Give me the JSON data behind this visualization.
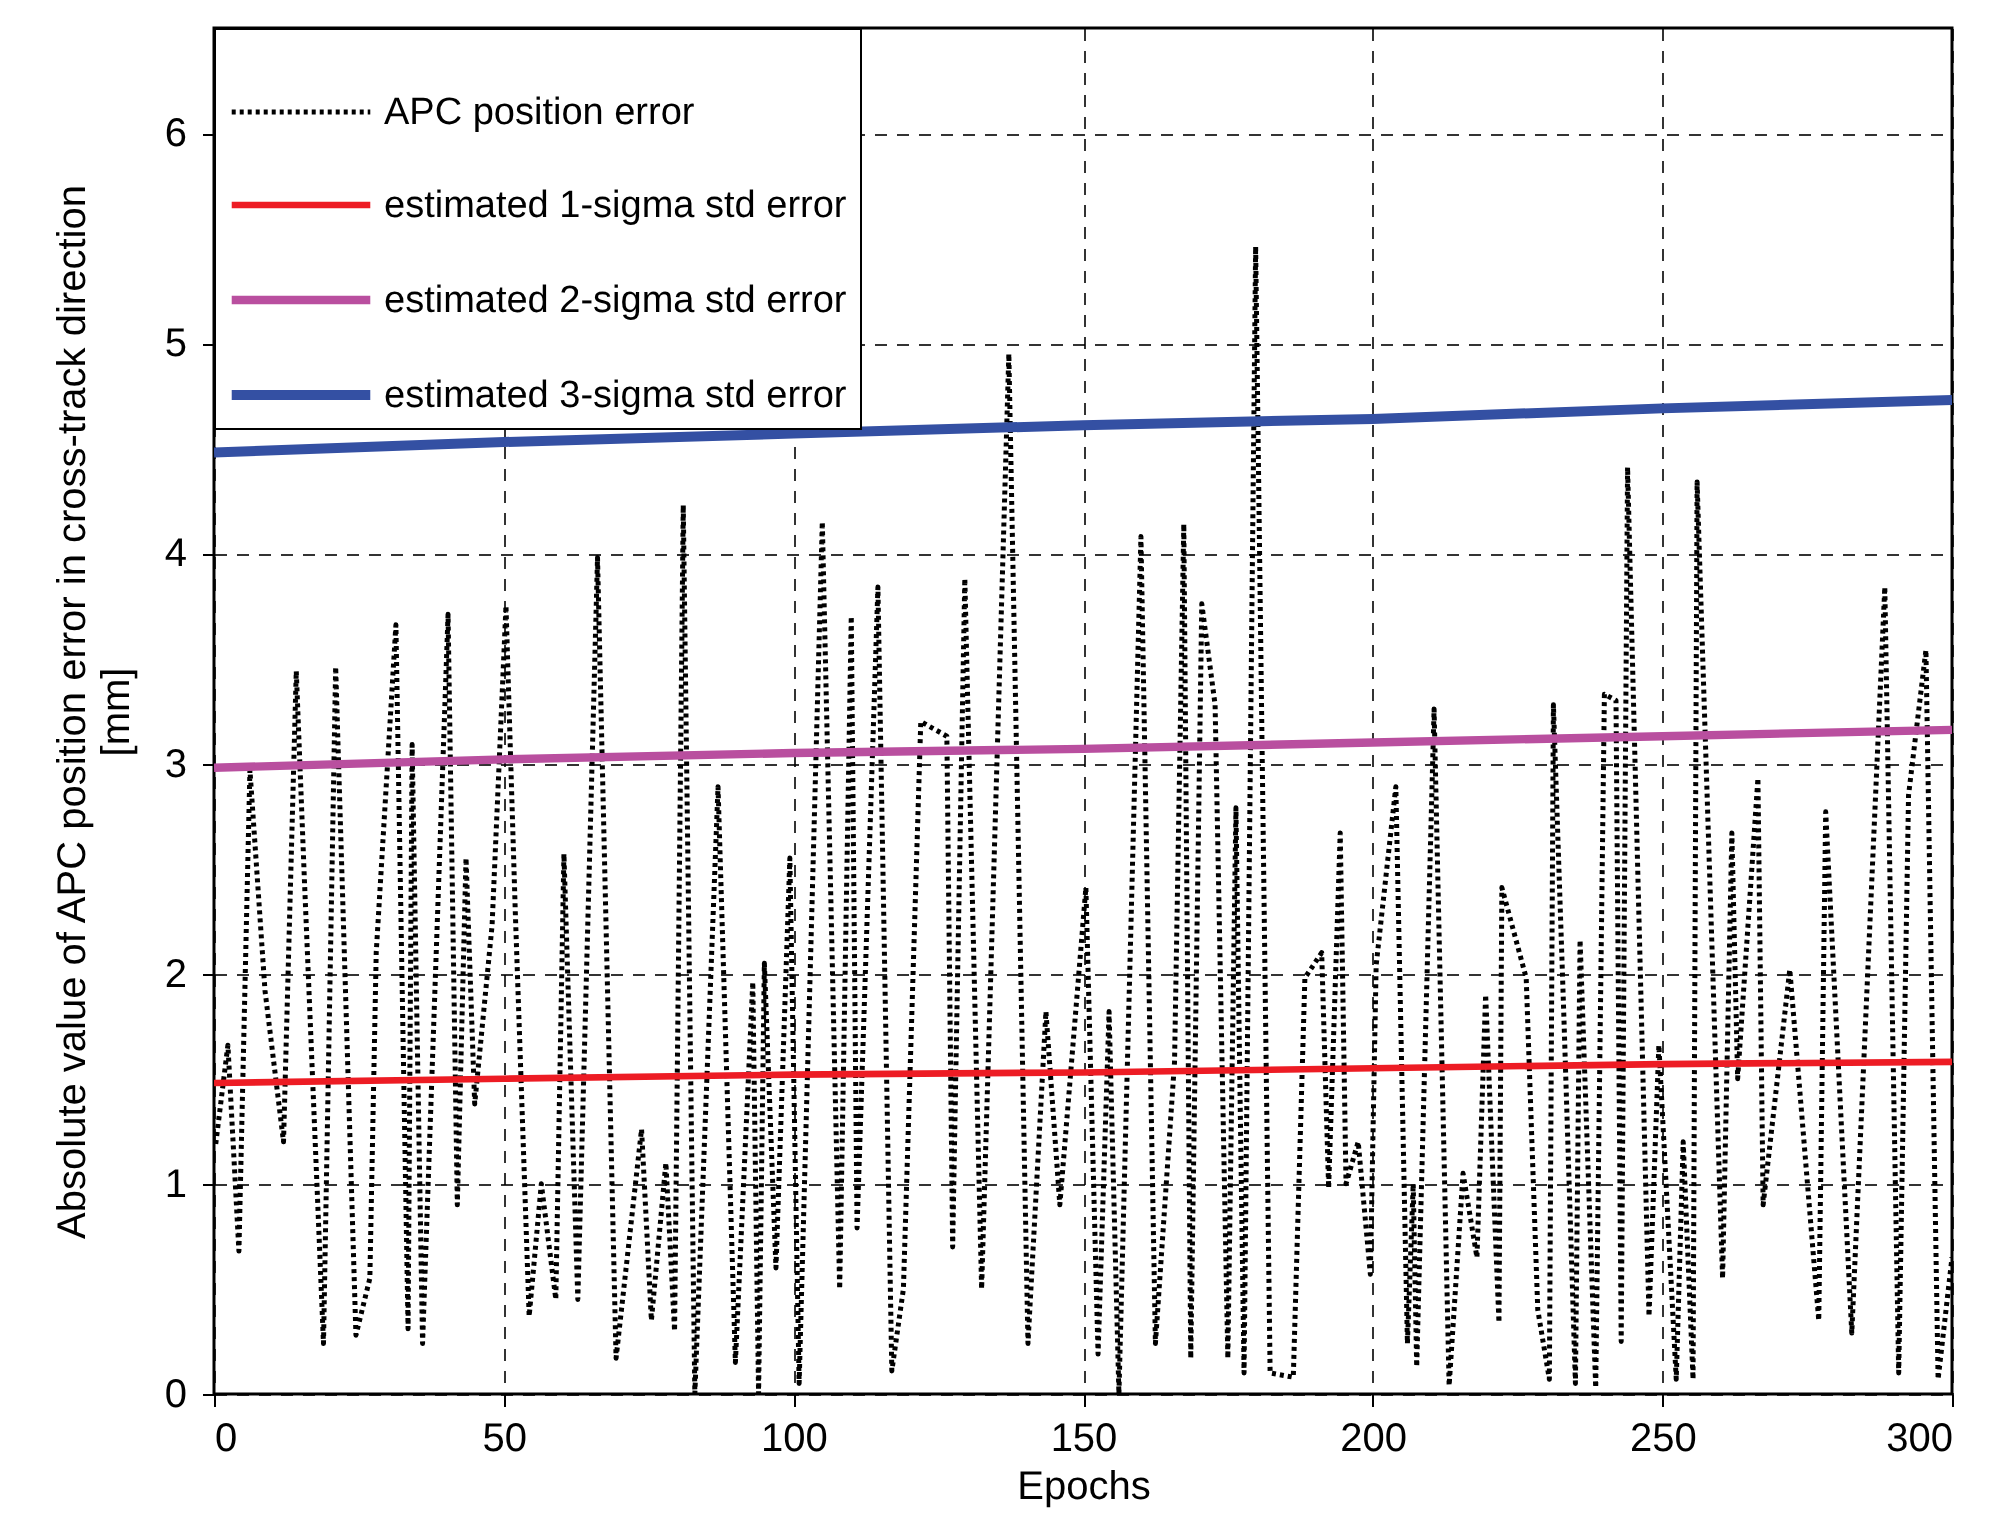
{
  "chart_data": {
    "type": "line",
    "xlabel": "Epochs",
    "ylabel": "Absolute value of APC position error in cross-track direction [mm]",
    "xlim": [
      0,
      300
    ],
    "ylim": [
      0,
      6.5
    ],
    "xticks": [
      0,
      50,
      100,
      150,
      200,
      250,
      300
    ],
    "yticks": [
      0,
      1,
      2,
      3,
      4,
      5,
      6
    ],
    "grid": true,
    "legend": "top left",
    "marker": "none",
    "series": [
      {
        "name": "APC position error",
        "color": "#000000",
        "line_style": "dotted",
        "x": [
          0.3,
          2.4,
          4.3,
          6.2,
          8.8,
          12,
          14.2,
          15.6,
          18.9,
          21,
          24.5,
          26.9,
          28,
          31.4,
          33.5,
          34.2,
          36,
          40.4,
          42,
          43.5,
          45,
          48,
          50.4,
          52,
          54.4,
          56.5,
          59,
          60.4,
          62.8,
          66.2,
          69.4,
          73.8,
          75.5,
          78,
          79.5,
          81,
          83,
          87,
          90,
          93,
          94,
          95,
          97,
          99.4,
          101,
          105,
          108,
          110,
          111,
          114.6,
          117,
          119,
          122,
          126.5,
          127.5,
          129.6,
          132.5,
          137.2,
          140.5,
          143.6,
          146,
          150.5,
          152.6,
          154.5,
          156.2,
          160,
          162.5,
          165.8,
          167.4,
          168.6,
          170.5,
          172.8,
          175,
          176.4,
          177.8,
          179.8,
          182.3,
          186.3,
          188.3,
          191.2,
          192.4,
          194.4,
          195.4,
          197.5,
          199.6,
          200.6,
          204,
          206,
          207,
          207.6,
          210.6,
          213.2,
          215.6,
          218,
          219.5,
          221.8,
          222.3,
          226.5,
          228.5,
          230.5,
          231.2,
          233,
          235,
          235.8,
          238.5,
          240,
          242,
          242.9,
          244,
          247.7,
          249.4,
          252.4,
          253.6,
          255.3,
          256,
          260.4,
          262,
          263,
          266.5,
          267.4,
          272,
          277,
          278.2,
          282.7,
          288.4,
          290.8,
          292.5,
          295.5,
          297.6,
          300
        ],
        "values": [
          1.19,
          1.66,
          0.68,
          2.97,
          1.92,
          1.2,
          3.44,
          2.45,
          0.24,
          3.46,
          0.28,
          0.55,
          2.1,
          3.66,
          0.31,
          3.09,
          0.24,
          3.71,
          0.9,
          2.55,
          1.38,
          2.23,
          3.75,
          2.3,
          0.37,
          1.0,
          0.45,
          2.57,
          0.45,
          3.98,
          0.17,
          1.26,
          0.35,
          1.1,
          0.3,
          4.23,
          0.0,
          2.89,
          0.15,
          1.96,
          0.0,
          2.05,
          0.6,
          2.55,
          0.05,
          4.15,
          0.5,
          3.7,
          0.79,
          3.84,
          0.11,
          0.5,
          3.2,
          3.13,
          0.7,
          3.88,
          0.5,
          4.95,
          0.24,
          1.82,
          0.9,
          2.41,
          0.19,
          1.82,
          0.0,
          4.08,
          0.24,
          1.58,
          4.14,
          0.17,
          3.76,
          3.28,
          0.17,
          2.79,
          0.1,
          5.46,
          0.1,
          0.08,
          1.98,
          2.1,
          0.98,
          2.67,
          1.0,
          1.2,
          0.57,
          2.04,
          2.89,
          0.24,
          1.0,
          0.13,
          3.26,
          0.04,
          1.05,
          0.65,
          1.9,
          0.34,
          2.41,
          1.98,
          0.4,
          0.07,
          3.28,
          1.8,
          0.05,
          2.16,
          0.03,
          3.33,
          3.3,
          0.25,
          4.41,
          0.37,
          1.66,
          0.07,
          1.2,
          0.07,
          4.34,
          0.55,
          2.67,
          1.5,
          2.93,
          0.9,
          2.02,
          0.35,
          2.77,
          0.29,
          3.84,
          0.1,
          2.85,
          3.54,
          0.07,
          0.65
        ]
      },
      {
        "name": "estimated 1-sigma std error",
        "color": "#ed1c24",
        "line_style": "solid",
        "x": [
          0,
          50,
          100,
          150,
          200,
          250,
          300
        ],
        "values": [
          1.48,
          1.5,
          1.52,
          1.53,
          1.55,
          1.57,
          1.58
        ]
      },
      {
        "name": "estimated 2-sigma std error",
        "color": "#b94f9f",
        "line_style": "solid",
        "x": [
          0,
          50,
          100,
          150,
          200,
          250,
          300
        ],
        "values": [
          2.98,
          3.02,
          3.05,
          3.07,
          3.1,
          3.13,
          3.16
        ]
      },
      {
        "name": "estimated 3-sigma std error",
        "color": "#3450a3",
        "line_style": "solid",
        "x": [
          0,
          50,
          100,
          150,
          200,
          250,
          300
        ],
        "values": [
          4.48,
          4.53,
          4.57,
          4.61,
          4.64,
          4.69,
          4.73
        ]
      }
    ]
  }
}
